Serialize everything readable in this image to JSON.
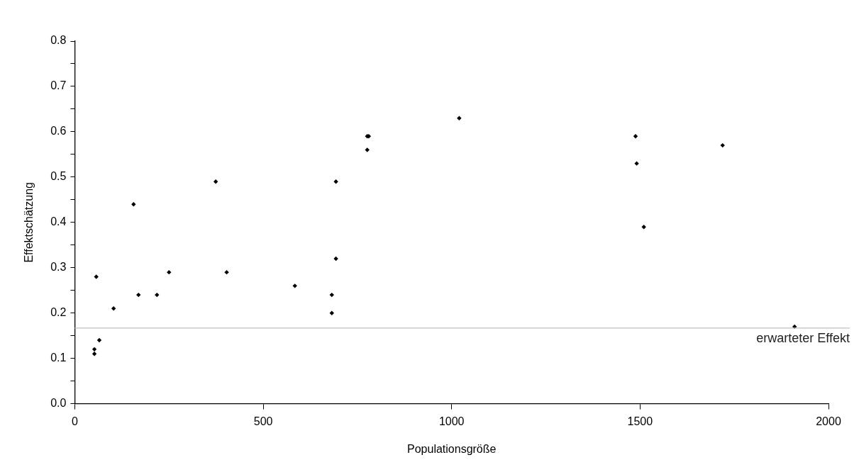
{
  "chart_data": {
    "type": "scatter",
    "xlabel": "Populationsgröße",
    "ylabel": "Effektschätzung",
    "x": [
      52,
      52,
      65,
      57,
      103,
      156,
      169,
      218,
      250,
      374,
      403,
      584,
      682,
      682,
      693,
      693,
      776,
      776,
      780,
      1020,
      1488,
      1491,
      1510,
      1719,
      1910
    ],
    "series": [
      {
        "color": "#000000",
        "values": [
          0.11,
          0.12,
          0.14,
          0.28,
          0.21,
          0.44,
          0.24,
          0.24,
          0.29,
          0.49,
          0.29,
          0.26,
          0.24,
          0.2,
          0.49,
          0.32,
          0.56,
          0.59,
          0.59,
          0.63,
          0.59,
          0.53,
          0.39,
          0.57,
          0.17
        ]
      }
    ],
    "xlim": [
      0,
      2000
    ],
    "xticks": [
      0,
      500,
      1000,
      1500,
      2000
    ],
    "ylim": [
      0,
      0.8
    ],
    "yticks": [
      {
        "value": 0,
        "label": "0.0"
      },
      {
        "value": 0.05,
        "label": null
      },
      {
        "value": 0.1,
        "label": "0.1"
      },
      {
        "value": 0.15,
        "label": null
      },
      {
        "value": 0.2,
        "label": "0.2"
      },
      {
        "value": 0.25,
        "label": null
      },
      {
        "value": 0.3,
        "label": "0.3"
      },
      {
        "value": 0.35,
        "label": null
      },
      {
        "value": 0.4,
        "label": "0.4"
      },
      {
        "value": 0.45,
        "label": null
      },
      {
        "value": 0.5,
        "label": "0.5"
      },
      {
        "value": 0.55,
        "label": null
      },
      {
        "value": 0.6,
        "label": "0.6"
      },
      {
        "value": 0.65,
        "label": null
      },
      {
        "value": 0.7,
        "label": "0.7"
      },
      {
        "value": 0.75,
        "label": null
      },
      {
        "value": 0.8,
        "label": "0.8"
      }
    ],
    "ref_lines": [
      {
        "axis": "y",
        "value": 0.167,
        "label": "erwarteter Effekt",
        "color": "#c0c0c0"
      }
    ],
    "marker": "diamond",
    "grid": false,
    "legend": false
  }
}
